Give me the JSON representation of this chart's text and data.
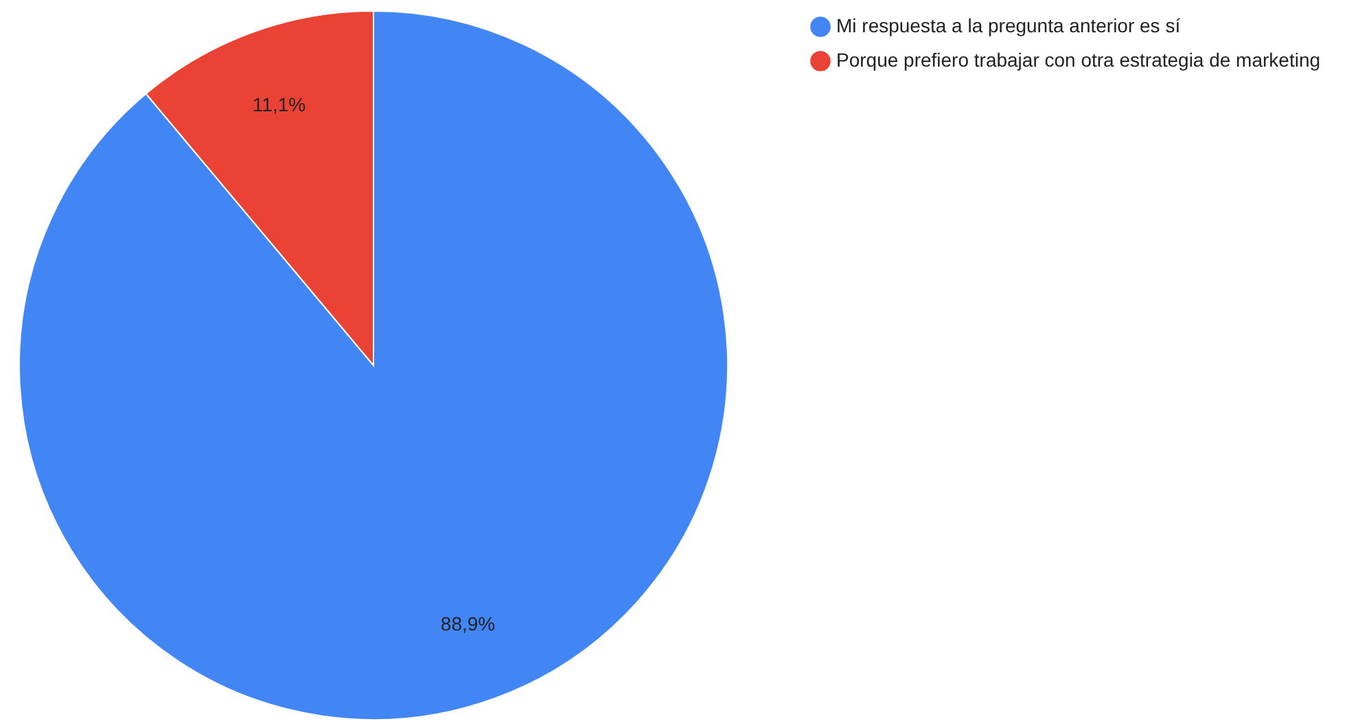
{
  "chart_data": {
    "type": "pie",
    "categories": [
      "Mi respuesta a la pregunta anterior es sí",
      "Porque prefiero trabajar con otra estrategia de marketing"
    ],
    "values": [
      88.9,
      11.1
    ],
    "colors": [
      "#4285f4",
      "#ea4335"
    ],
    "value_labels": [
      "88,9%",
      "11,1%"
    ],
    "legend": "top right"
  }
}
